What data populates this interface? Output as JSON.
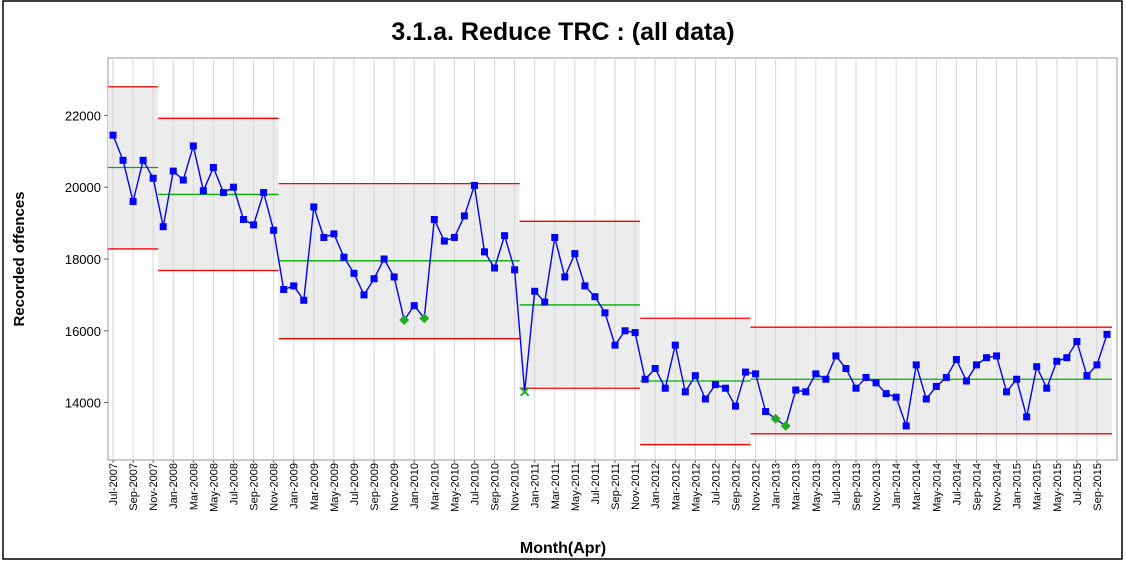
{
  "chart_data": {
    "type": "control",
    "title": "3.1.a. Reduce TRC : (all data)",
    "x_label": "Month(Apr)",
    "y_label": "Recorded offences",
    "ylim": [
      12400,
      23600
    ],
    "yticks": [
      14000,
      16000,
      18000,
      20000,
      22000
    ],
    "grid": true,
    "categories": [
      "Jul-2007",
      null,
      "Sep-2007",
      null,
      "Nov-2007",
      null,
      "Jan-2008",
      null,
      "Mar-2008",
      null,
      "May-2008",
      null,
      "Jul-2008",
      null,
      "Sep-2008",
      null,
      "Nov-2008",
      null,
      "Jan-2009",
      null,
      "Mar-2009",
      null,
      "May-2009",
      null,
      "Jul-2009",
      null,
      "Sep-2009",
      null,
      "Nov-2009",
      null,
      "Jan-2010",
      null,
      "Mar-2010",
      null,
      "May-2010",
      null,
      "Jul-2010",
      null,
      "Sep-2010",
      null,
      "Nov-2010",
      null,
      "Jan-2011",
      null,
      "Mar-2011",
      null,
      "May-2011",
      null,
      "Jul-2011",
      null,
      "Sep-2011",
      null,
      "Nov-2011",
      null,
      "Jan-2012",
      null,
      "Mar-2012",
      null,
      "May-2012",
      null,
      "Jul-2012",
      null,
      "Sep-2012",
      null,
      "Nov-2012",
      null,
      "Jan-2013",
      null,
      "Mar-2013",
      null,
      "May-2013",
      null,
      "Jul-2013",
      null,
      "Sep-2013",
      null,
      "Nov-2013",
      null,
      "Jan-2014",
      null,
      "Mar-2014",
      null,
      "May-2014",
      null,
      "Jul-2014",
      null,
      "Sep-2014",
      null,
      "Nov-2014",
      null,
      "Jan-2015",
      null,
      "Mar-2015",
      null,
      "May-2015",
      null,
      "Jul-2015",
      null,
      "Sep-2015",
      null
    ],
    "values": [
      21450,
      20750,
      19600,
      20750,
      20250,
      18900,
      20450,
      20200,
      21150,
      19900,
      20550,
      19850,
      20000,
      19100,
      18950,
      19850,
      18800,
      17150,
      17250,
      16850,
      19450,
      18600,
      18700,
      18050,
      17600,
      17000,
      17450,
      18000,
      17500,
      16300,
      16700,
      16350,
      19100,
      18500,
      18600,
      19200,
      20050,
      18200,
      17750,
      18650,
      17700,
      14300,
      17100,
      16800,
      18600,
      17500,
      18150,
      17250,
      16950,
      16500,
      15600,
      16000,
      15950,
      14650,
      14950,
      14400,
      15600,
      14300,
      14750,
      14100,
      14500,
      14400,
      13900,
      14850,
      14800,
      13750,
      13550,
      13350,
      14350,
      14300,
      14800,
      14650,
      15300,
      14950,
      14400,
      14700,
      14550,
      14250,
      14150,
      13350,
      15050,
      14100,
      14450,
      14700,
      15200,
      14600,
      15050,
      15250,
      15300,
      14300,
      14650,
      13600,
      15000,
      14400,
      15150,
      15250,
      15700,
      14750,
      15050,
      15900
    ],
    "color": "#0000ff",
    "point_styles": [
      "square",
      "square",
      "square",
      "square",
      "square",
      "square",
      "square",
      "square",
      "square",
      "square",
      "square",
      "square",
      "square",
      "square",
      "square",
      "square",
      "square",
      "square",
      "square",
      "square",
      "square",
      "square",
      "square",
      "square",
      "square",
      "square",
      "square",
      "square",
      "square",
      "diamond",
      "square",
      "diamond",
      "square",
      "square",
      "square",
      "square",
      "square",
      "square",
      "square",
      "square",
      "square",
      "cross",
      "square",
      "square",
      "square",
      "square",
      "square",
      "square",
      "square",
      "square",
      "square",
      "square",
      "square",
      "square",
      "square",
      "square",
      "square",
      "square",
      "square",
      "square",
      "square",
      "square",
      "square",
      "square",
      "square",
      "square",
      "diamond",
      "diamond",
      "square",
      "square",
      "square",
      "square",
      "square",
      "square",
      "square",
      "square",
      "square",
      "square",
      "square",
      "square",
      "square",
      "square",
      "square",
      "square",
      "square",
      "square",
      "square",
      "square",
      "square",
      "square",
      "square",
      "square",
      "square",
      "square",
      "square",
      "square",
      "square",
      "square",
      "square",
      "square"
    ],
    "signal_color": "#22aa22",
    "ucl": [
      22800,
      22800,
      22800,
      22800,
      22800,
      21920,
      21920,
      21920,
      21920,
      21920,
      21920,
      21920,
      21920,
      21920,
      21920,
      21920,
      21920,
      20100,
      20100,
      20100,
      20100,
      20100,
      20100,
      20100,
      20100,
      20100,
      20100,
      20100,
      20100,
      20100,
      20100,
      20100,
      20100,
      20100,
      20100,
      20100,
      20100,
      20100,
      20100,
      20100,
      20100,
      19050,
      19050,
      19050,
      19050,
      19050,
      19050,
      19050,
      19050,
      19050,
      19050,
      19050,
      19050,
      16350,
      16350,
      16350,
      16350,
      16350,
      16350,
      16350,
      16350,
      16350,
      16350,
      16350,
      16100,
      16100,
      16100,
      16100,
      16100,
      16100,
      16100,
      16100,
      16100,
      16100,
      16100,
      16100,
      16100,
      16100,
      16100,
      16100,
      16100,
      16100,
      16100,
      16100,
      16100,
      16100,
      16100,
      16100,
      16100,
      16100,
      16100,
      16100,
      16100,
      16100,
      16100,
      16100,
      16100,
      16100,
      16100,
      16100
    ],
    "cl": [
      20550,
      20550,
      20550,
      20550,
      20550,
      19800,
      19800,
      19800,
      19800,
      19800,
      19800,
      19800,
      19800,
      19800,
      19800,
      19800,
      19800,
      17950,
      17950,
      17950,
      17950,
      17950,
      17950,
      17950,
      17950,
      17950,
      17950,
      17950,
      17950,
      17950,
      17950,
      17950,
      17950,
      17950,
      17950,
      17950,
      17950,
      17950,
      17950,
      17950,
      17950,
      16720,
      16720,
      16720,
      16720,
      16720,
      16720,
      16720,
      16720,
      16720,
      16720,
      16720,
      16720,
      14600,
      14600,
      14600,
      14600,
      14600,
      14600,
      14600,
      14600,
      14600,
      14600,
      14600,
      14650,
      14650,
      14650,
      14650,
      14650,
      14650,
      14650,
      14650,
      14650,
      14650,
      14650,
      14650,
      14650,
      14650,
      14650,
      14650,
      14650,
      14650,
      14650,
      14650,
      14650,
      14650,
      14650,
      14650,
      14650,
      14650,
      14650,
      14650,
      14650,
      14650,
      14650,
      14650,
      14650,
      14650,
      14650,
      14650
    ],
    "lcl": [
      18280,
      18280,
      18280,
      18280,
      18280,
      17680,
      17680,
      17680,
      17680,
      17680,
      17680,
      17680,
      17680,
      17680,
      17680,
      17680,
      17680,
      15780,
      15780,
      15780,
      15780,
      15780,
      15780,
      15780,
      15780,
      15780,
      15780,
      15780,
      15780,
      15780,
      15780,
      15780,
      15780,
      15780,
      15780,
      15780,
      15780,
      15780,
      15780,
      15780,
      15780,
      14400,
      14400,
      14400,
      14400,
      14400,
      14400,
      14400,
      14400,
      14400,
      14400,
      14400,
      14400,
      12830,
      12830,
      12830,
      12830,
      12830,
      12830,
      12830,
      12830,
      12830,
      12830,
      12830,
      13130,
      13130,
      13130,
      13130,
      13130,
      13130,
      13130,
      13130,
      13130,
      13130,
      13130,
      13130,
      13130,
      13130,
      13130,
      13130,
      13130,
      13130,
      13130,
      13130,
      13130,
      13130,
      13130,
      13130,
      13130,
      13130,
      13130,
      13130,
      13130,
      13130,
      13130,
      13130,
      13130,
      13130,
      13130,
      13130
    ],
    "cl_color": "#00b000",
    "limit_color": "#ff0000",
    "band_color": "#ececec"
  }
}
